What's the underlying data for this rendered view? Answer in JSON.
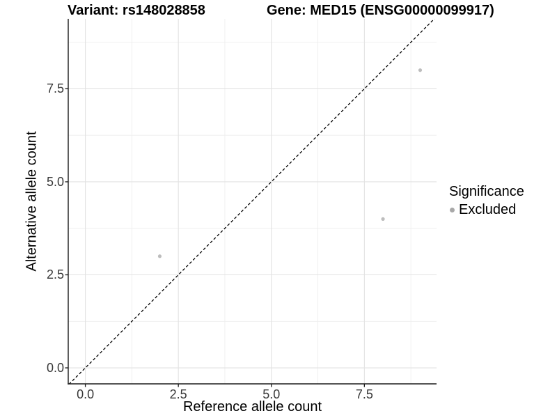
{
  "header": {
    "variant_title": "Variant: rs148028858",
    "gene_title": "Gene: MED15 (ENSG00000099917)"
  },
  "chart_data": {
    "type": "scatter",
    "xlabel": "Reference allele count",
    "ylabel": "Alternative allele count",
    "xlim": [
      -0.46,
      9.44
    ],
    "ylim": [
      -0.43,
      9.38
    ],
    "x_ticks": [
      0,
      2.5,
      5,
      7.5
    ],
    "y_ticks": [
      0,
      2.5,
      5,
      7.5
    ],
    "x_tick_labels": [
      "0.0",
      "2.5",
      "5.0",
      "7.5"
    ],
    "y_tick_labels": [
      "0.0",
      "2.5",
      "5.0",
      "7.5"
    ],
    "x_minor_ticks": [
      1.25,
      3.75,
      6.25,
      8.75
    ],
    "y_minor_ticks": [
      1.25,
      3.75,
      6.25,
      8.75
    ],
    "grid": true,
    "reference_line": {
      "type": "identity",
      "equation": "y = x",
      "style": "dashed",
      "color": "#000000"
    },
    "series": [
      {
        "name": "Excluded",
        "marker": "circle",
        "color": "#bdbdbd",
        "points": [
          {
            "x": 2,
            "y": 3
          },
          {
            "x": 8,
            "y": 4
          },
          {
            "x": 9,
            "y": 8
          }
        ]
      }
    ],
    "legend": {
      "title": "Significance",
      "position": "right",
      "items": [
        {
          "label": "Excluded",
          "marker_color": "#a8a8a8"
        }
      ]
    },
    "colors": {
      "point": "#bdbdbd",
      "grid_major": "#e2e2e2",
      "grid_minor": "#eeeeee",
      "axis_line": "#1a1a1a",
      "tick_text": "#383838",
      "background": "#ffffff"
    }
  }
}
